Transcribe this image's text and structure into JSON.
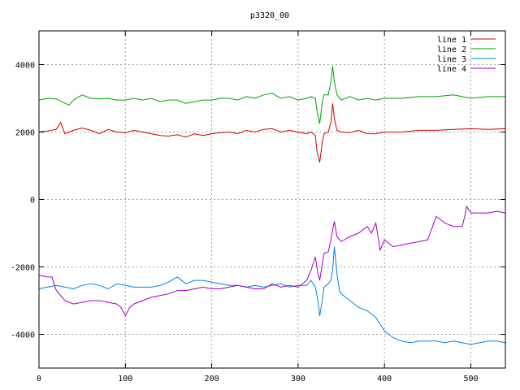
{
  "chart_data": {
    "type": "line",
    "title": "p3320_00",
    "xlabel": "",
    "ylabel": "",
    "xlim": [
      0,
      540
    ],
    "ylim": [
      -5000,
      5000
    ],
    "xticks": [
      0,
      100,
      200,
      300,
      400,
      500
    ],
    "yticks": [
      -4000,
      -2000,
      0,
      2000,
      4000
    ],
    "grid": true,
    "legend_position": "top-right",
    "series": [
      {
        "name": "line 1",
        "color": "#d00000",
        "x": [
          0,
          10,
          20,
          25,
          30,
          40,
          50,
          60,
          70,
          80,
          90,
          100,
          110,
          120,
          130,
          140,
          150,
          160,
          170,
          180,
          190,
          200,
          210,
          220,
          230,
          240,
          250,
          260,
          270,
          280,
          290,
          300,
          310,
          315,
          320,
          322,
          325,
          328,
          330,
          335,
          338,
          340,
          342,
          345,
          350,
          360,
          370,
          380,
          390,
          400,
          420,
          440,
          460,
          480,
          500,
          520,
          540
        ],
        "y": [
          2000,
          2030,
          2080,
          2280,
          1950,
          2050,
          2120,
          2050,
          1950,
          2080,
          2000,
          1980,
          2050,
          2000,
          1950,
          1900,
          1880,
          1920,
          1850,
          1950,
          1900,
          1950,
          1980,
          2000,
          1950,
          2050,
          2000,
          2080,
          2100,
          2000,
          2050,
          2000,
          1950,
          2000,
          1900,
          1400,
          1100,
          1700,
          1950,
          2000,
          2300,
          2850,
          2400,
          2050,
          2000,
          1980,
          2050,
          1950,
          1950,
          2000,
          2000,
          2050,
          2050,
          2080,
          2100,
          2080,
          2100
        ]
      },
      {
        "name": "line 2",
        "color": "#00a000",
        "x": [
          0,
          10,
          20,
          30,
          35,
          40,
          50,
          60,
          70,
          80,
          90,
          100,
          110,
          120,
          130,
          140,
          150,
          160,
          170,
          180,
          190,
          200,
          210,
          220,
          230,
          240,
          250,
          260,
          270,
          280,
          290,
          300,
          310,
          315,
          320,
          322,
          325,
          328,
          330,
          335,
          338,
          340,
          342,
          345,
          350,
          360,
          370,
          380,
          390,
          400,
          420,
          440,
          460,
          480,
          500,
          520,
          540
        ],
        "y": [
          2950,
          3000,
          2980,
          2850,
          2800,
          2950,
          3100,
          3000,
          2980,
          3000,
          2950,
          2950,
          3000,
          2950,
          3000,
          2900,
          2950,
          2950,
          2850,
          2900,
          2950,
          2950,
          3000,
          3000,
          2950,
          3050,
          3000,
          3100,
          3150,
          3000,
          3050,
          2950,
          3000,
          3050,
          3000,
          2600,
          2250,
          2900,
          3100,
          3100,
          3500,
          3950,
          3500,
          3100,
          2950,
          3050,
          2950,
          3000,
          2950,
          3000,
          3000,
          3050,
          3050,
          3100,
          3000,
          3050,
          3050
        ]
      },
      {
        "name": "line 3",
        "color": "#0080e0",
        "x": [
          0,
          10,
          20,
          30,
          40,
          50,
          60,
          70,
          80,
          90,
          100,
          110,
          120,
          130,
          140,
          150,
          160,
          170,
          180,
          190,
          200,
          210,
          220,
          230,
          240,
          250,
          260,
          270,
          280,
          290,
          300,
          310,
          315,
          320,
          323,
          325,
          328,
          330,
          335,
          338,
          340,
          342,
          345,
          348,
          350,
          355,
          360,
          370,
          380,
          390,
          400,
          410,
          420,
          430,
          440,
          450,
          460,
          470,
          480,
          490,
          500,
          510,
          520,
          530,
          540
        ],
        "y": [
          -2650,
          -2600,
          -2550,
          -2600,
          -2650,
          -2550,
          -2500,
          -2550,
          -2650,
          -2500,
          -2550,
          -2600,
          -2600,
          -2600,
          -2550,
          -2450,
          -2300,
          -2500,
          -2400,
          -2400,
          -2450,
          -2500,
          -2550,
          -2550,
          -2600,
          -2550,
          -2600,
          -2550,
          -2500,
          -2600,
          -2550,
          -2550,
          -2400,
          -2600,
          -3000,
          -3450,
          -3000,
          -2600,
          -2500,
          -2400,
          -2100,
          -1400,
          -2200,
          -2700,
          -2800,
          -2900,
          -3000,
          -3200,
          -3300,
          -3500,
          -3900,
          -4100,
          -4200,
          -4250,
          -4200,
          -4200,
          -4200,
          -4250,
          -4200,
          -4250,
          -4300,
          -4250,
          -4200,
          -4200,
          -4250
        ]
      },
      {
        "name": "line 4",
        "color": "#a000c0",
        "x": [
          0,
          10,
          15,
          20,
          30,
          40,
          50,
          60,
          70,
          80,
          90,
          95,
          100,
          105,
          110,
          120,
          130,
          140,
          150,
          160,
          170,
          180,
          190,
          200,
          210,
          220,
          230,
          240,
          250,
          260,
          270,
          280,
          290,
          300,
          310,
          315,
          320,
          323,
          325,
          328,
          330,
          335,
          338,
          340,
          342,
          345,
          350,
          360,
          370,
          380,
          385,
          390,
          395,
          400,
          405,
          410,
          420,
          430,
          440,
          450,
          460,
          470,
          480,
          490,
          493,
          495,
          500,
          510,
          520,
          530,
          540
        ],
        "y": [
          -2250,
          -2300,
          -2300,
          -2700,
          -3000,
          -3100,
          -3050,
          -3000,
          -3000,
          -3050,
          -3100,
          -3200,
          -3450,
          -3200,
          -3100,
          -3000,
          -2900,
          -2850,
          -2800,
          -2700,
          -2700,
          -2650,
          -2600,
          -2650,
          -2650,
          -2600,
          -2550,
          -2600,
          -2650,
          -2650,
          -2500,
          -2600,
          -2550,
          -2600,
          -2400,
          -2100,
          -1700,
          -2200,
          -2400,
          -1900,
          -1600,
          -1550,
          -1200,
          -900,
          -650,
          -1100,
          -1250,
          -1100,
          -1000,
          -800,
          -1000,
          -700,
          -1500,
          -1200,
          -1300,
          -1400,
          -1350,
          -1300,
          -1250,
          -1200,
          -500,
          -700,
          -800,
          -800,
          -500,
          -200,
          -400,
          -400,
          -400,
          -350,
          -400
        ]
      }
    ]
  }
}
